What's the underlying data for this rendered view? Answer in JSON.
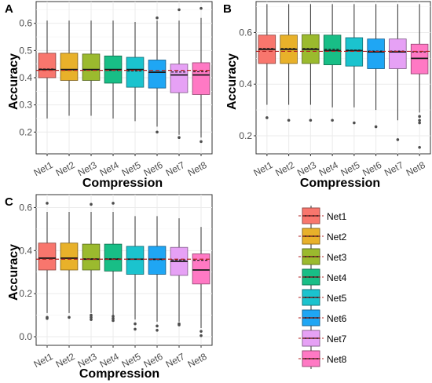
{
  "chart_data": [
    {
      "panel": "A",
      "type": "box",
      "xlabel": "Compression",
      "ylabel": "Accuracy",
      "categories": [
        "Net1",
        "Net2",
        "Net3",
        "Net4",
        "Net5",
        "Net6",
        "Net7",
        "Net8"
      ],
      "yticks": [
        "0.2",
        "0.3",
        "0.4",
        "0.5",
        "0.6"
      ],
      "ylim": [
        0.12,
        0.68
      ],
      "reference_line": 0.427,
      "boxes": [
        {
          "whisker_low": 0.25,
          "q1": 0.4,
          "median": 0.43,
          "mean": 0.432,
          "q3": 0.49,
          "whisker_high": 0.61,
          "outliers": []
        },
        {
          "whisker_low": 0.26,
          "q1": 0.39,
          "median": 0.43,
          "mean": 0.428,
          "q3": 0.49,
          "whisker_high": 0.61,
          "outliers": []
        },
        {
          "whisker_low": 0.26,
          "q1": 0.39,
          "median": 0.43,
          "mean": 0.428,
          "q3": 0.487,
          "whisker_high": 0.61,
          "outliers": []
        },
        {
          "whisker_low": 0.25,
          "q1": 0.38,
          "median": 0.43,
          "mean": 0.427,
          "q3": 0.48,
          "whisker_high": 0.61,
          "outliers": []
        },
        {
          "whisker_low": 0.24,
          "q1": 0.365,
          "median": 0.43,
          "mean": 0.425,
          "q3": 0.475,
          "whisker_high": 0.605,
          "outliers": []
        },
        {
          "whisker_low": 0.22,
          "q1": 0.362,
          "median": 0.42,
          "mean": 0.42,
          "q3": 0.465,
          "whisker_high": 0.61,
          "outliers": [
            0.2,
            0.62
          ]
        },
        {
          "whisker_low": 0.19,
          "q1": 0.345,
          "median": 0.41,
          "mean": 0.421,
          "q3": 0.45,
          "whisker_high": 0.61,
          "outliers": [
            0.18,
            0.65
          ]
        },
        {
          "whisker_low": 0.18,
          "q1": 0.338,
          "median": 0.41,
          "mean": 0.422,
          "q3": 0.455,
          "whisker_high": 0.62,
          "outliers": [
            0.165,
            0.655
          ]
        }
      ]
    },
    {
      "panel": "B",
      "type": "box",
      "xlabel": "Compression",
      "ylabel": "Accuracy",
      "categories": [
        "Net1",
        "Net2",
        "Net3",
        "Net4",
        "Net5",
        "Net6",
        "Net7",
        "Net8"
      ],
      "yticks": [
        "0.2",
        "0.4",
        "0.6"
      ],
      "ylim": [
        0.13,
        0.72
      ],
      "reference_line": 0.527,
      "boxes": [
        {
          "whisker_low": 0.32,
          "q1": 0.48,
          "median": 0.535,
          "mean": 0.538,
          "q3": 0.59,
          "whisker_high": 0.71,
          "outliers": [
            0.27
          ]
        },
        {
          "whisker_low": 0.32,
          "q1": 0.48,
          "median": 0.535,
          "mean": 0.538,
          "q3": 0.59,
          "whisker_high": 0.71,
          "outliers": [
            0.26
          ]
        },
        {
          "whisker_low": 0.32,
          "q1": 0.48,
          "median": 0.535,
          "mean": 0.538,
          "q3": 0.592,
          "whisker_high": 0.71,
          "outliers": [
            0.26
          ]
        },
        {
          "whisker_low": 0.31,
          "q1": 0.475,
          "median": 0.53,
          "mean": 0.535,
          "q3": 0.59,
          "whisker_high": 0.71,
          "outliers": [
            0.26
          ]
        },
        {
          "whisker_low": 0.31,
          "q1": 0.47,
          "median": 0.53,
          "mean": 0.532,
          "q3": 0.58,
          "whisker_high": 0.71,
          "outliers": [
            0.25
          ]
        },
        {
          "whisker_low": 0.3,
          "q1": 0.46,
          "median": 0.525,
          "mean": 0.528,
          "q3": 0.575,
          "whisker_high": 0.71,
          "outliers": [
            0.235
          ]
        },
        {
          "whisker_low": 0.26,
          "q1": 0.46,
          "median": 0.525,
          "mean": 0.528,
          "q3": 0.575,
          "whisker_high": 0.71,
          "outliers": [
            0.185
          ]
        },
        {
          "whisker_low": 0.29,
          "q1": 0.44,
          "median": 0.5,
          "mean": 0.525,
          "q3": 0.555,
          "whisker_high": 0.71,
          "outliers": [
            0.155,
            0.25,
            0.26,
            0.275
          ]
        }
      ]
    },
    {
      "panel": "C",
      "type": "box",
      "xlabel": "Compression",
      "ylabel": "Accuracy",
      "categories": [
        "Net1",
        "Net2",
        "Net3",
        "Net4",
        "Net5",
        "Net6",
        "Net7",
        "Net8"
      ],
      "yticks": [
        "0.0",
        "0.2",
        "0.4",
        "0.6"
      ],
      "ylim": [
        -0.04,
        0.66
      ],
      "reference_line": 0.36,
      "boxes": [
        {
          "whisker_low": 0.11,
          "q1": 0.31,
          "median": 0.365,
          "mean": 0.365,
          "q3": 0.435,
          "whisker_high": 0.58,
          "outliers": [
            0.09,
            0.085,
            0.62
          ]
        },
        {
          "whisker_low": 0.11,
          "q1": 0.31,
          "median": 0.365,
          "mean": 0.365,
          "q3": 0.435,
          "whisker_high": 0.58,
          "outliers": [
            0.09
          ]
        },
        {
          "whisker_low": 0.11,
          "q1": 0.31,
          "median": 0.36,
          "mean": 0.362,
          "q3": 0.43,
          "whisker_high": 0.58,
          "outliers": [
            0.1,
            0.09,
            0.08,
            0.615
          ]
        },
        {
          "whisker_low": 0.1,
          "q1": 0.305,
          "median": 0.36,
          "mean": 0.362,
          "q3": 0.43,
          "whisker_high": 0.58,
          "outliers": [
            0.095,
            0.085,
            0.075,
            0.62
          ]
        },
        {
          "whisker_low": 0.08,
          "q1": 0.29,
          "median": 0.36,
          "mean": 0.36,
          "q3": 0.42,
          "whisker_high": 0.56,
          "outliers": [
            0.06,
            0.035
          ]
        },
        {
          "whisker_low": 0.07,
          "q1": 0.29,
          "median": 0.36,
          "mean": 0.358,
          "q3": 0.42,
          "whisker_high": 0.56,
          "outliers": [
            0.05,
            0.03
          ]
        },
        {
          "whisker_low": 0.07,
          "q1": 0.285,
          "median": 0.35,
          "mean": 0.357,
          "q3": 0.415,
          "whisker_high": 0.55,
          "outliers": [
            0.06,
            0.055
          ]
        },
        {
          "whisker_low": 0.04,
          "q1": 0.245,
          "median": 0.31,
          "mean": 0.355,
          "q3": 0.385,
          "whisker_high": 0.51,
          "outliers": [
            0.025,
            0.005
          ]
        }
      ]
    }
  ],
  "legend": {
    "items": [
      "Net1",
      "Net2",
      "Net3",
      "Net4",
      "Net5",
      "Net6",
      "Net7",
      "Net8"
    ]
  },
  "colors": {
    "series": [
      "#F8766D",
      "#E8B12A",
      "#9BBA2E",
      "#18BE86",
      "#1BC3CE",
      "#1FA6F4",
      "#E6A1F5",
      "#FF79C4"
    ],
    "reference_line": "#B22222",
    "panel_background": "#FFFFFF",
    "grid": "#EBEBEB",
    "axis_text": "#4D4D4D"
  }
}
